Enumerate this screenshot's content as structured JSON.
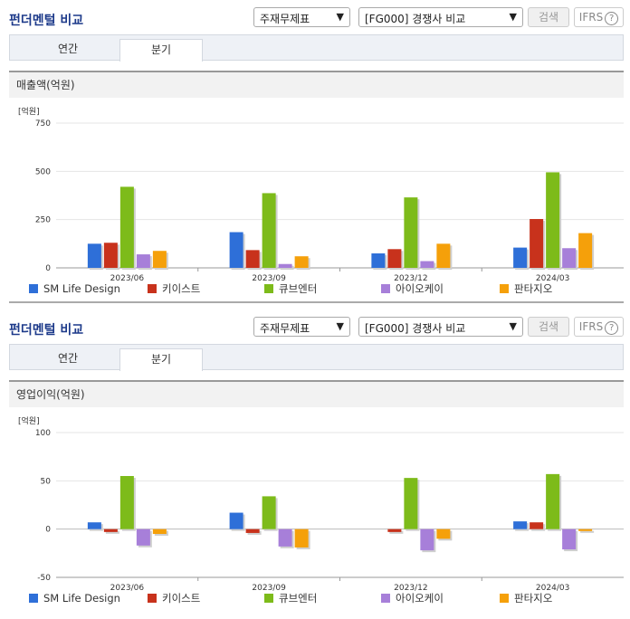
{
  "sections": [
    {
      "title": "펀더멘털 비교",
      "select1": "주재무제표",
      "select2": "[FG000] 경쟁사 비교",
      "search_label": "검색",
      "ifrs_label": "IFRS",
      "ifrs_help": "?",
      "tabs": [
        "연간",
        "분기"
      ],
      "active_tab": "분기",
      "panel_title": "매출액(억원)"
    },
    {
      "title": "펀더멘털 비교",
      "select1": "주재무제표",
      "select2": "[FG000] 경쟁사 비교",
      "search_label": "검색",
      "ifrs_label": "IFRS",
      "ifrs_help": "?",
      "tabs": [
        "연간",
        "분기"
      ],
      "active_tab": "분기",
      "panel_title": "영업이익(억원)"
    }
  ],
  "colors": {
    "SM Life Design": "#2e6fd8",
    "키이스트": "#c8321c",
    "큐브엔터": "#7dbb1a",
    "아이오케이": "#a77fd9",
    "판타지오": "#f5a00a"
  },
  "chart_data": [
    {
      "type": "bar",
      "unit_label": "[억원]",
      "categories": [
        "2023/06",
        "2023/09",
        "2023/12",
        "2024/03"
      ],
      "ylim": [
        0,
        750
      ],
      "yticks": [
        0,
        250,
        500,
        750
      ],
      "series": [
        {
          "name": "SM Life Design",
          "values": [
            125,
            185,
            75,
            105
          ]
        },
        {
          "name": "키이스트",
          "values": [
            130,
            92,
            97,
            253
          ]
        },
        {
          "name": "큐브엔터",
          "values": [
            420,
            387,
            365,
            495
          ]
        },
        {
          "name": "아이오케이",
          "values": [
            70,
            20,
            35,
            102
          ]
        },
        {
          "name": "판타지오",
          "values": [
            88,
            60,
            125,
            180
          ]
        }
      ]
    },
    {
      "type": "bar",
      "unit_label": "[억원]",
      "categories": [
        "2023/06",
        "2023/09",
        "2023/12",
        "2024/03"
      ],
      "ylim": [
        -50,
        100
      ],
      "yticks": [
        -50,
        0,
        50,
        100
      ],
      "series": [
        {
          "name": "SM Life Design",
          "values": [
            7,
            17,
            0,
            8
          ]
        },
        {
          "name": "키이스트",
          "values": [
            -3,
            -4,
            -3,
            7
          ]
        },
        {
          "name": "큐브엔터",
          "values": [
            55,
            34,
            53,
            57
          ]
        },
        {
          "name": "아이오케이",
          "values": [
            -17,
            -18,
            -22,
            -21
          ]
        },
        {
          "name": "판타지오",
          "values": [
            -5,
            -19,
            -10,
            -2
          ]
        }
      ]
    }
  ]
}
